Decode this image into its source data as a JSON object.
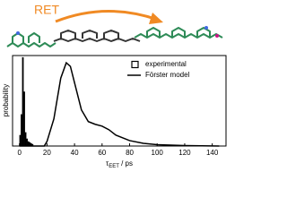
{
  "annotation": "RET",
  "chart_data": {
    "type": "histogram",
    "y_label": "probability",
    "x_label": [
      "τ",
      "EET",
      " / ps"
    ],
    "xlim": [
      -5,
      150
    ],
    "xticks": [
      0,
      20,
      40,
      60,
      80,
      100,
      120,
      140
    ],
    "ylim": [
      0,
      1
    ],
    "legend": "top-right",
    "series": [
      {
        "name": "experimental",
        "type": "histogram",
        "color": "#000000",
        "bins": [
          0,
          1,
          2,
          3,
          4,
          5,
          6,
          7,
          8,
          9,
          10
        ],
        "values": [
          0.12,
          0.35,
          0.98,
          0.6,
          0.15,
          0.08,
          0.05,
          0.04,
          0.03,
          0.02
        ]
      },
      {
        "name": "Förster model",
        "type": "line",
        "color": "#000000",
        "x": [
          0,
          18,
          20,
          25,
          30,
          34,
          37,
          40,
          45,
          50,
          55,
          60,
          65,
          70,
          80,
          90,
          100,
          120,
          145
        ],
        "values": [
          0,
          0,
          0.05,
          0.3,
          0.75,
          0.92,
          0.88,
          0.7,
          0.4,
          0.27,
          0.24,
          0.22,
          0.18,
          0.12,
          0.06,
          0.03,
          0.015,
          0.005,
          0
        ]
      }
    ]
  }
}
